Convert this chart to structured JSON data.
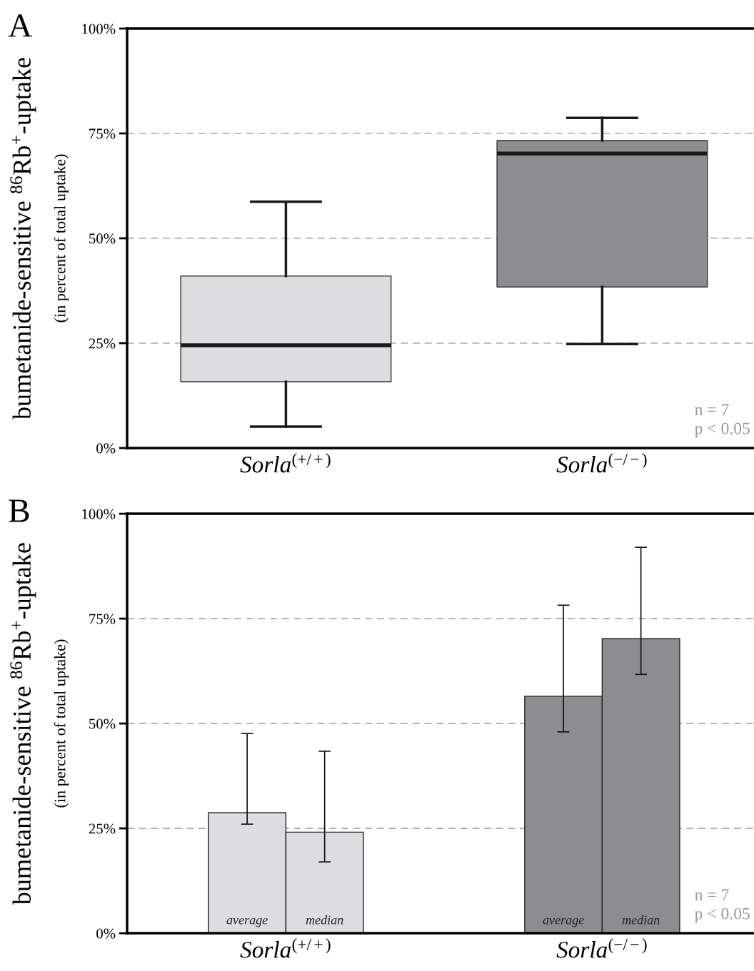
{
  "chart_data": [
    {
      "type": "box",
      "title": "A",
      "ylabel": "bumetanide-sensitive $^{86}$Rb$^{+}$-uptake",
      "categories": [
        "Sorla$^{(+/+)}$",
        "Sorla$^{(−/−)}$"
      ],
      "boxes": [
        {
          "low": 5.1,
          "q1": 15.8,
          "median": 24.5,
          "q3": 41.0,
          "high": 58.7
        },
        {
          "low": 24.8,
          "q1": 38.4,
          "median": 70.2,
          "q3": 73.3,
          "high": 78.7
        }
      ],
      "colors": [
        "#dcdddf",
        "#8c8d8f"
      ],
      "ylim": [
        0,
        100
      ],
      "yticks": [
        {
          "value": 0,
          "label": "0%"
        },
        {
          "value": 25,
          "label": "25%"
        },
        {
          "value": 50,
          "label": "50%"
        },
        {
          "value": 75,
          "label": "75%"
        },
        {
          "value": 100,
          "label": "100%"
        }
      ],
      "grid": "y",
      "annotations": [
        "(in percent of total uptake)",
        "n = 7\np < 0.05"
      ]
    },
    {
      "type": "bar",
      "title": "B",
      "ylabel": "bumetanide-sensitive $^{86}$Rb$^{+}$-uptake",
      "categories": [
        "Sorla$^{(+/+)}$",
        "Sorla$^{(−/−)}$"
      ],
      "series": [
        {
          "name": "average",
          "colors": [
            "#dcdddf",
            "#8c8d8f"
          ],
          "values": [
            28.7,
            56.5
          ],
          "errors": [
            [
              26.0,
              47.6
            ],
            [
              48.0,
              78.2
            ]
          ]
        },
        {
          "name": "median",
          "colors": [
            "#dcdddf",
            "#8c8d8f"
          ],
          "values": [
            24.1,
            70.2
          ],
          "errors": [
            [
              17.0,
              43.4
            ],
            [
              61.7,
              92.0
            ]
          ]
        }
      ],
      "ylim": [
        0,
        100
      ],
      "yticks": [
        {
          "value": 0,
          "label": "0%"
        },
        {
          "value": 25,
          "label": "25%"
        },
        {
          "value": 50,
          "label": "50%"
        },
        {
          "value": 75,
          "label": "75%"
        },
        {
          "value": 100,
          "label": "100%"
        }
      ],
      "grid": "y",
      "annotations": [
        "(in percent of total uptake)",
        "n = 7\np < 0.05"
      ]
    }
  ]
}
